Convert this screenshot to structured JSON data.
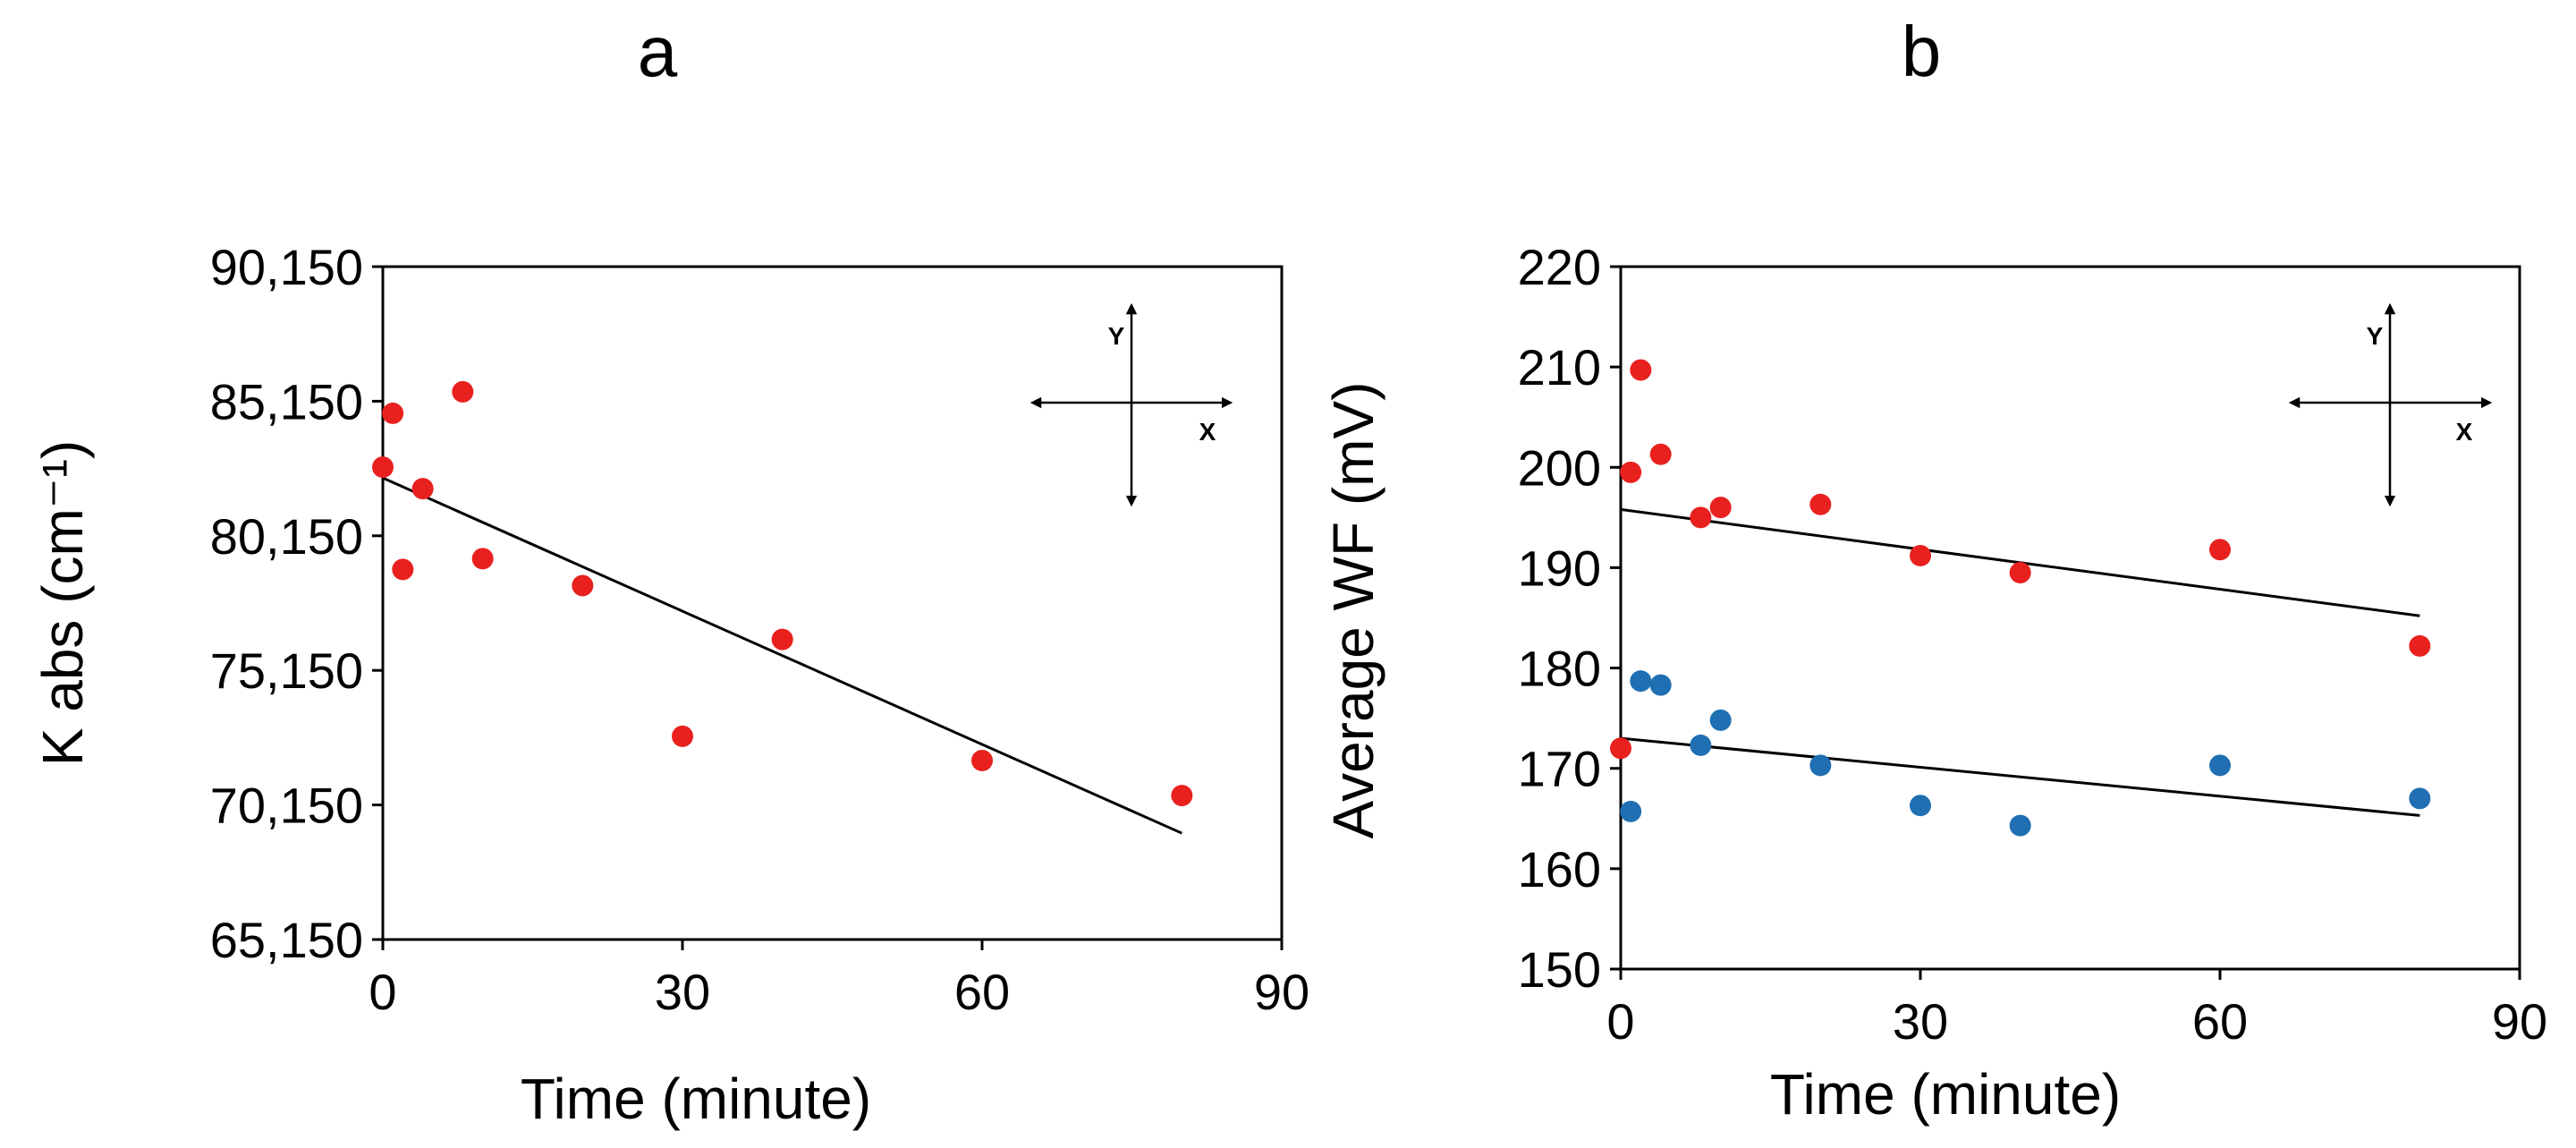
{
  "chart_data": [
    {
      "panel": "a",
      "type": "scatter",
      "xlabel": "Time (minute)",
      "ylabel": "K abs (cm⁻¹)",
      "xlim": [
        0,
        90
      ],
      "ylim": [
        65150,
        90150
      ],
      "xticks": [
        0,
        30,
        60,
        90
      ],
      "yticks": [
        65150,
        70150,
        75150,
        80150,
        85150,
        90150
      ],
      "ytick_labels": [
        "65,150",
        "70,150",
        "75,150",
        "80,150",
        "85,150",
        "90,150"
      ],
      "grid": false,
      "inset": {
        "x_label": "X",
        "y_label": "Y"
      },
      "series": [
        {
          "color": "#e8211f",
          "points": [
            {
              "x": 0,
              "y": 82700
            },
            {
              "x": 1,
              "y": 84700
            },
            {
              "x": 2,
              "y": 78900
            },
            {
              "x": 4,
              "y": 81900
            },
            {
              "x": 8,
              "y": 85500
            },
            {
              "x": 10,
              "y": 79300
            },
            {
              "x": 20,
              "y": 78300
            },
            {
              "x": 30,
              "y": 72700
            },
            {
              "x": 40,
              "y": 76300
            },
            {
              "x": 60,
              "y": 71800
            },
            {
              "x": 80,
              "y": 70500
            }
          ],
          "trend": {
            "x0": 0,
            "y0": 82300,
            "x1": 80,
            "y1": 69100
          }
        }
      ]
    },
    {
      "panel": "b",
      "type": "scatter",
      "xlabel": "Time (minute)",
      "ylabel": "Average WF (mV)",
      "xlim": [
        0,
        90
      ],
      "ylim": [
        150,
        220
      ],
      "xticks": [
        0,
        30,
        60,
        90
      ],
      "yticks": [
        150,
        160,
        170,
        180,
        190,
        200,
        210,
        220
      ],
      "ytick_labels": [
        "150",
        "160",
        "170",
        "180",
        "190",
        "200",
        "210",
        "220"
      ],
      "grid": false,
      "inset": {
        "x_label": "X",
        "y_label": "Y"
      },
      "series": [
        {
          "color": "#e8211f",
          "points": [
            {
              "x": 0,
              "y": 172
            },
            {
              "x": 1,
              "y": 199.5
            },
            {
              "x": 2,
              "y": 209.7
            },
            {
              "x": 4,
              "y": 201.3
            },
            {
              "x": 8,
              "y": 195
            },
            {
              "x": 10,
              "y": 196
            },
            {
              "x": 20,
              "y": 196.3
            },
            {
              "x": 30,
              "y": 191.2
            },
            {
              "x": 40,
              "y": 189.5
            },
            {
              "x": 60,
              "y": 191.8
            },
            {
              "x": 80,
              "y": 182.2
            }
          ],
          "trend": {
            "x0": 0,
            "y0": 195.8,
            "x1": 80,
            "y1": 185.2
          }
        },
        {
          "color": "#1f6fb2",
          "points": [
            {
              "x": 1,
              "y": 165.7
            },
            {
              "x": 2,
              "y": 178.7
            },
            {
              "x": 4,
              "y": 178.3
            },
            {
              "x": 8,
              "y": 172.3
            },
            {
              "x": 10,
              "y": 174.8
            },
            {
              "x": 20,
              "y": 170.3
            },
            {
              "x": 30,
              "y": 166.3
            },
            {
              "x": 40,
              "y": 164.3
            },
            {
              "x": 60,
              "y": 170.3
            },
            {
              "x": 80,
              "y": 167
            }
          ],
          "trend": {
            "x0": 0,
            "y0": 173,
            "x1": 80,
            "y1": 165.3
          }
        }
      ]
    }
  ]
}
